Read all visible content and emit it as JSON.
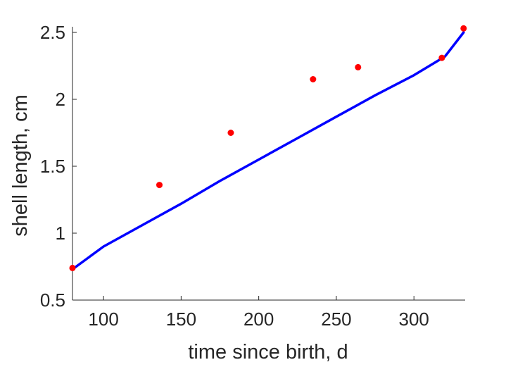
{
  "chart_data": {
    "type": "line",
    "xlabel": "time since birth, d",
    "ylabel": "shell length, cm",
    "xlim": [
      80,
      333
    ],
    "ylim": [
      0.5,
      2.55
    ],
    "xticks": [
      100,
      150,
      200,
      250,
      300
    ],
    "xtick_labels": [
      "100",
      "150",
      "200",
      "250",
      "300"
    ],
    "yticks": [
      0.5,
      1,
      1.5,
      2,
      2.5
    ],
    "ytick_labels": [
      "0.5",
      "1",
      "1.5",
      "2",
      "2.5"
    ],
    "grid": false,
    "series": [
      {
        "kind": "scatter",
        "color": "#ff0000",
        "x": [
          80,
          136,
          182,
          235,
          264,
          318,
          332
        ],
        "y": [
          0.74,
          1.36,
          1.75,
          2.15,
          2.24,
          2.31,
          2.53
        ]
      },
      {
        "kind": "line",
        "color": "#0000ff",
        "x": [
          80,
          100,
          125,
          150,
          175,
          200,
          225,
          250,
          275,
          300,
          320,
          332
        ],
        "y": [
          0.73,
          0.9,
          1.06,
          1.22,
          1.39,
          1.55,
          1.71,
          1.87,
          2.03,
          2.18,
          2.32,
          2.5
        ]
      }
    ]
  }
}
